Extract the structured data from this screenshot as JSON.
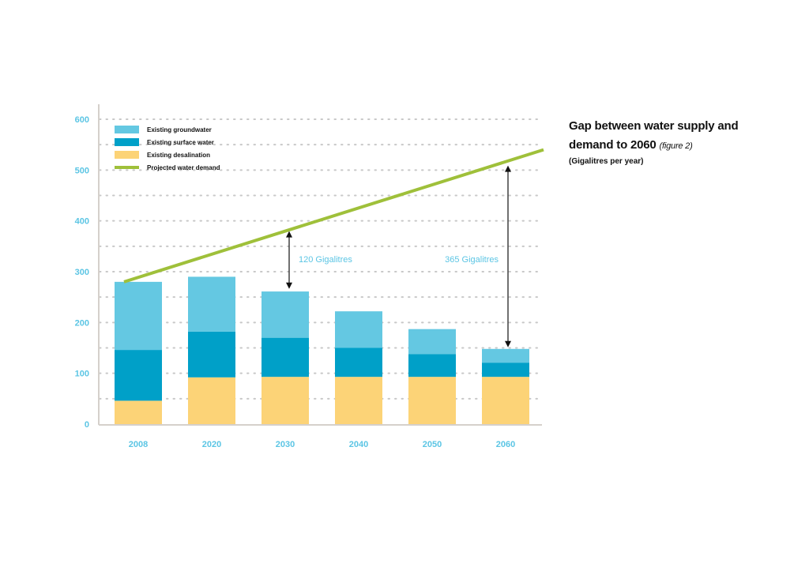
{
  "title": {
    "line1": "Gap between water supply and",
    "line2": "demand to 2060",
    "note": "(figure 2)",
    "unit": "(Gigalitres per year)"
  },
  "colors": {
    "groundwater": "#64c8e2",
    "surface": "#00a0c8",
    "desalination": "#fcd377",
    "demand": "#9fc03a",
    "axis_text": "#5bc5e4",
    "annotation_text": "#5bc5e4",
    "grid": "#c8c8c8",
    "axis": "#d5d0cb"
  },
  "chart_data": {
    "type": "bar",
    "stacked": true,
    "categories": [
      "2008",
      "2020",
      "2030",
      "2040",
      "2050",
      "2060"
    ],
    "series": [
      {
        "name": "Existing desalination",
        "color_key": "desalination",
        "values": [
          46,
          92,
          93,
          93,
          93,
          93
        ]
      },
      {
        "name": "Existing surface water",
        "color_key": "surface",
        "values": [
          100,
          90,
          77,
          57,
          45,
          28
        ]
      },
      {
        "name": "Existing groundwater",
        "color_key": "groundwater",
        "values": [
          134,
          108,
          91,
          72,
          49,
          27
        ]
      }
    ],
    "line_series": {
      "name": "Projected water demand",
      "color_key": "demand",
      "start": {
        "category": "2008",
        "value": 280
      },
      "end": {
        "category": "beyond 2060",
        "value": 540
      }
    },
    "annotations": [
      {
        "label": "120 Gigalitres",
        "category": "2030",
        "from": 263,
        "to": 383
      },
      {
        "label": "365 Gigalitres",
        "category": "2060",
        "from": 148,
        "to": 512
      }
    ],
    "legend": [
      "Existing groundwater",
      "Existing surface water",
      "Existing desalination",
      "Projected water demand"
    ],
    "legend_position": "top-left",
    "ylim": [
      0,
      600
    ],
    "yticks": [
      0,
      100,
      200,
      300,
      400,
      500,
      600
    ],
    "grid": "dotted horizontal",
    "xlabel": "",
    "ylabel": ""
  }
}
